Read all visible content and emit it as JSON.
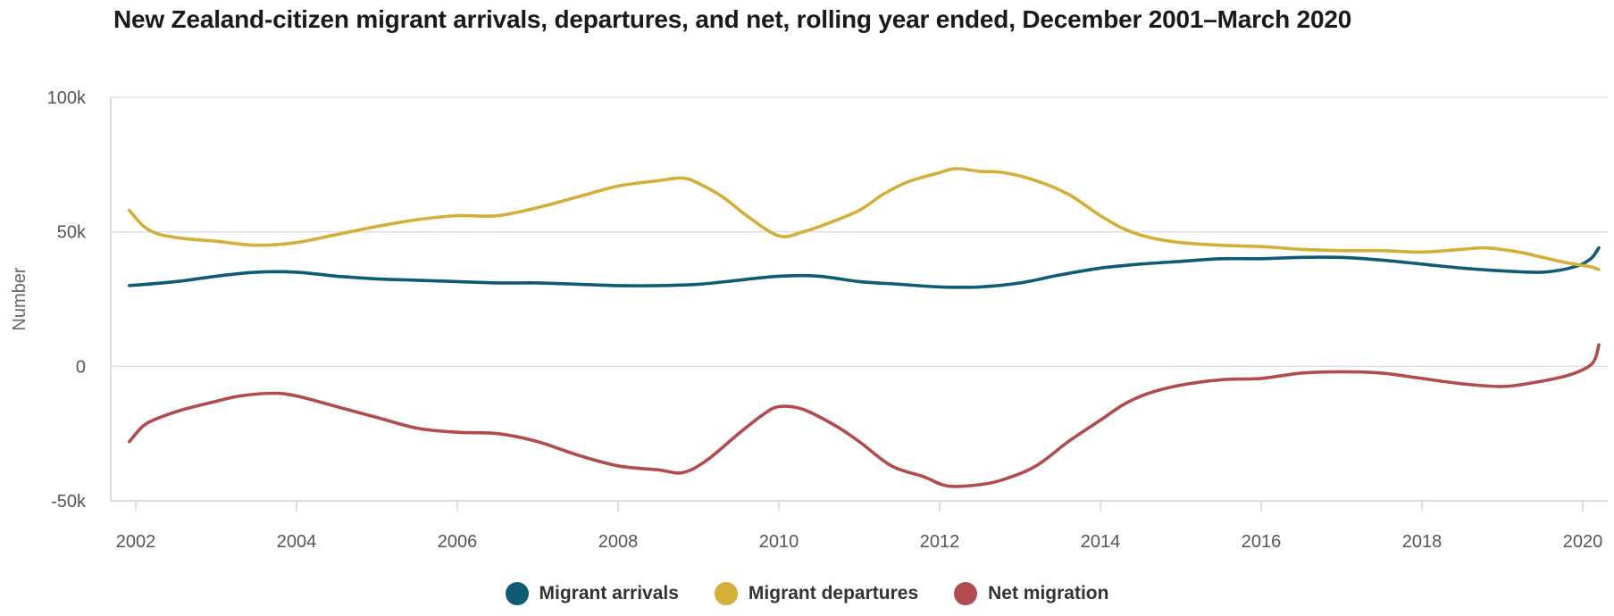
{
  "chart_data": {
    "type": "line",
    "title": "New Zealand-citizen migrant arrivals, departures, and net, rolling year ended, December 2001–March 2020",
    "xlabel": "",
    "ylabel": "Number",
    "xlim": [
      2001.9,
      2020.25
    ],
    "ylim": [
      -50000,
      100000
    ],
    "y_ticks": [
      {
        "value": 100000,
        "label": "100k"
      },
      {
        "value": 50000,
        "label": "50k"
      },
      {
        "value": 0,
        "label": "0"
      },
      {
        "value": -50000,
        "label": "-50k"
      }
    ],
    "x_ticks": [
      {
        "value": 2002,
        "label": "2002"
      },
      {
        "value": 2004,
        "label": "2004"
      },
      {
        "value": 2006,
        "label": "2006"
      },
      {
        "value": 2008,
        "label": "2008"
      },
      {
        "value": 2010,
        "label": "2010"
      },
      {
        "value": 2012,
        "label": "2012"
      },
      {
        "value": 2014,
        "label": "2014"
      },
      {
        "value": 2016,
        "label": "2016"
      },
      {
        "value": 2018,
        "label": "2018"
      },
      {
        "value": 2020,
        "label": "2020"
      }
    ],
    "grid": true,
    "legend_position": "bottom-center",
    "series": [
      {
        "name": "Migrant arrivals",
        "color": "#0d5c73",
        "points": [
          [
            2001.92,
            30000
          ],
          [
            2002.5,
            31500
          ],
          [
            2003.0,
            33500
          ],
          [
            2003.5,
            35000
          ],
          [
            2004.0,
            35000
          ],
          [
            2004.5,
            33500
          ],
          [
            2005.0,
            32500
          ],
          [
            2005.5,
            32000
          ],
          [
            2006.0,
            31500
          ],
          [
            2006.5,
            31000
          ],
          [
            2007.0,
            31000
          ],
          [
            2007.5,
            30500
          ],
          [
            2008.0,
            30000
          ],
          [
            2008.5,
            30000
          ],
          [
            2009.0,
            30500
          ],
          [
            2009.5,
            32000
          ],
          [
            2010.0,
            33500
          ],
          [
            2010.5,
            33500
          ],
          [
            2011.0,
            31500
          ],
          [
            2011.5,
            30500
          ],
          [
            2012.0,
            29500
          ],
          [
            2012.5,
            29500
          ],
          [
            2013.0,
            31000
          ],
          [
            2013.5,
            34000
          ],
          [
            2014.0,
            36500
          ],
          [
            2014.5,
            38000
          ],
          [
            2015.0,
            39000
          ],
          [
            2015.5,
            40000
          ],
          [
            2016.0,
            40000
          ],
          [
            2016.5,
            40500
          ],
          [
            2017.0,
            40500
          ],
          [
            2017.5,
            39500
          ],
          [
            2018.0,
            38000
          ],
          [
            2018.5,
            36500
          ],
          [
            2019.0,
            35500
          ],
          [
            2019.5,
            35000
          ],
          [
            2019.9,
            37000
          ],
          [
            2020.1,
            40000
          ],
          [
            2020.2,
            44000
          ]
        ]
      },
      {
        "name": "Migrant departures",
        "color": "#d4af37",
        "points": [
          [
            2001.92,
            58000
          ],
          [
            2002.1,
            52000
          ],
          [
            2002.3,
            49000
          ],
          [
            2002.6,
            47500
          ],
          [
            2003.0,
            46500
          ],
          [
            2003.5,
            45000
          ],
          [
            2004.0,
            46000
          ],
          [
            2004.5,
            49000
          ],
          [
            2005.0,
            52000
          ],
          [
            2005.5,
            54500
          ],
          [
            2006.0,
            56000
          ],
          [
            2006.5,
            56000
          ],
          [
            2007.0,
            59000
          ],
          [
            2007.5,
            63000
          ],
          [
            2008.0,
            67000
          ],
          [
            2008.5,
            69000
          ],
          [
            2008.8,
            70000
          ],
          [
            2009.0,
            68000
          ],
          [
            2009.3,
            63000
          ],
          [
            2009.6,
            56000
          ],
          [
            2010.0,
            48500
          ],
          [
            2010.3,
            50000
          ],
          [
            2010.6,
            53000
          ],
          [
            2011.0,
            58000
          ],
          [
            2011.3,
            64000
          ],
          [
            2011.6,
            68500
          ],
          [
            2012.0,
            72000
          ],
          [
            2012.2,
            73500
          ],
          [
            2012.5,
            72500
          ],
          [
            2012.8,
            72000
          ],
          [
            2013.2,
            69000
          ],
          [
            2013.6,
            64000
          ],
          [
            2014.0,
            56000
          ],
          [
            2014.3,
            51000
          ],
          [
            2014.6,
            48000
          ],
          [
            2015.0,
            46000
          ],
          [
            2015.5,
            45000
          ],
          [
            2016.0,
            44500
          ],
          [
            2016.5,
            43500
          ],
          [
            2017.0,
            43000
          ],
          [
            2017.5,
            43000
          ],
          [
            2018.0,
            42500
          ],
          [
            2018.5,
            43500
          ],
          [
            2018.8,
            44000
          ],
          [
            2019.2,
            42500
          ],
          [
            2019.5,
            40500
          ],
          [
            2019.8,
            38500
          ],
          [
            2020.1,
            37000
          ],
          [
            2020.2,
            36000
          ]
        ]
      },
      {
        "name": "Net migration",
        "color": "#b24a4e",
        "points": [
          [
            2001.92,
            -28000
          ],
          [
            2002.1,
            -22000
          ],
          [
            2002.3,
            -19000
          ],
          [
            2002.6,
            -16000
          ],
          [
            2003.0,
            -13000
          ],
          [
            2003.3,
            -11000
          ],
          [
            2003.7,
            -10000
          ],
          [
            2004.0,
            -11000
          ],
          [
            2004.5,
            -15000
          ],
          [
            2005.0,
            -19000
          ],
          [
            2005.5,
            -23000
          ],
          [
            2006.0,
            -24500
          ],
          [
            2006.5,
            -25000
          ],
          [
            2007.0,
            -28000
          ],
          [
            2007.5,
            -33000
          ],
          [
            2008.0,
            -37000
          ],
          [
            2008.5,
            -38500
          ],
          [
            2008.8,
            -39500
          ],
          [
            2009.1,
            -35000
          ],
          [
            2009.5,
            -25000
          ],
          [
            2009.8,
            -18000
          ],
          [
            2010.0,
            -15000
          ],
          [
            2010.3,
            -16000
          ],
          [
            2010.7,
            -22000
          ],
          [
            2011.0,
            -28000
          ],
          [
            2011.4,
            -37000
          ],
          [
            2011.8,
            -41000
          ],
          [
            2012.1,
            -44500
          ],
          [
            2012.5,
            -44000
          ],
          [
            2012.8,
            -42000
          ],
          [
            2013.2,
            -37000
          ],
          [
            2013.6,
            -28000
          ],
          [
            2014.0,
            -20000
          ],
          [
            2014.3,
            -14000
          ],
          [
            2014.6,
            -10000
          ],
          [
            2015.0,
            -7000
          ],
          [
            2015.5,
            -5000
          ],
          [
            2016.0,
            -4500
          ],
          [
            2016.5,
            -2500
          ],
          [
            2017.0,
            -2000
          ],
          [
            2017.5,
            -2500
          ],
          [
            2018.0,
            -4500
          ],
          [
            2018.5,
            -6500
          ],
          [
            2019.0,
            -7500
          ],
          [
            2019.4,
            -6000
          ],
          [
            2019.8,
            -3500
          ],
          [
            2020.05,
            -500
          ],
          [
            2020.15,
            2500
          ],
          [
            2020.2,
            8000
          ]
        ]
      }
    ]
  }
}
